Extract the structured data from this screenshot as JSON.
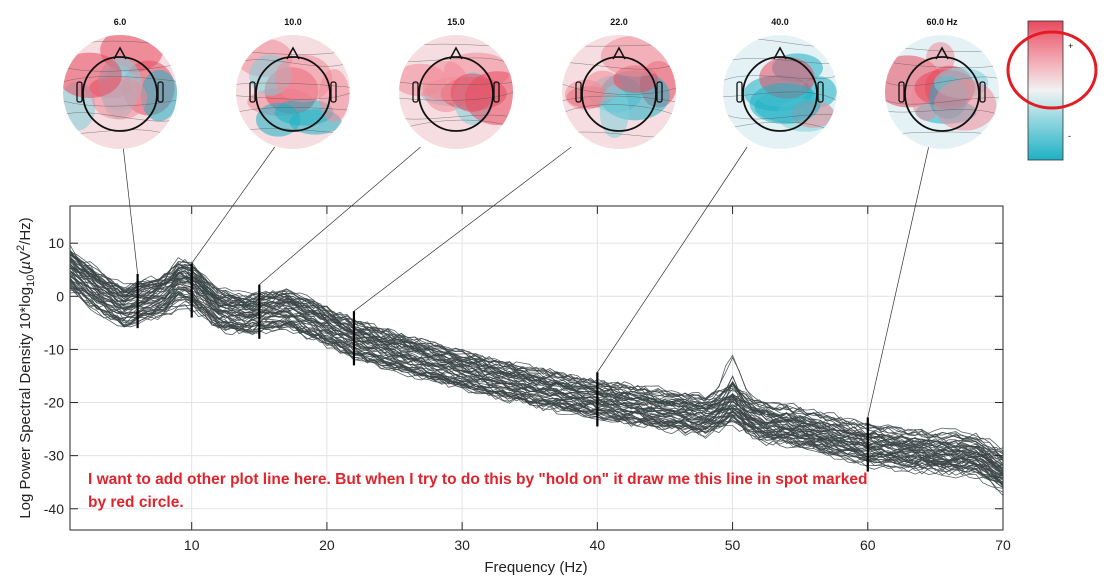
{
  "chart_data": {
    "type": "line",
    "title": "",
    "xlabel": "Frequency (Hz)",
    "ylabel_prefix": "Log Power Spectral Density 10*log",
    "ylabel_sub": "10",
    "ylabel_mid": "(",
    "ylabel_mu": "µ",
    "ylabel_v": "V",
    "ylabel_sup": "2",
    "ylabel_suffix": "/Hz)",
    "xlim": [
      1,
      70
    ],
    "ylim": [
      -44,
      17
    ],
    "xticks": [
      10,
      20,
      30,
      40,
      50,
      60,
      70
    ],
    "yticks": [
      10,
      0,
      -10,
      -20,
      -30,
      -40
    ],
    "grid": true,
    "channel_count": 64,
    "line_color": "#3a4444",
    "mean_spectrum": {
      "x": [
        1,
        3,
        5,
        6,
        8,
        9,
        10,
        11,
        12,
        13,
        14,
        15,
        17,
        19,
        22,
        25,
        30,
        35,
        40,
        45,
        48,
        50,
        52,
        55,
        60,
        65,
        68,
        70
      ],
      "y": [
        5,
        1,
        -2,
        -1,
        0,
        1.5,
        1,
        -0.5,
        -2.5,
        -3,
        -3.5,
        -3,
        -2.5,
        -4.5,
        -8,
        -10.5,
        -14,
        -17,
        -19.5,
        -21.5,
        -22.5,
        -21,
        -23.5,
        -25,
        -28,
        -29.5,
        -30,
        -33
      ]
    },
    "topomaps": [
      {
        "label": "6.0",
        "freq": 6
      },
      {
        "label": "10.0",
        "freq": 10
      },
      {
        "label": "15.0",
        "freq": 15
      },
      {
        "label": "22.0",
        "freq": 22
      },
      {
        "label": "40.0",
        "freq": 40
      },
      {
        "label": "60.0 Hz",
        "freq": 60
      }
    ],
    "colorbar": {
      "plus_label": "+",
      "minus_label": "-",
      "top_color": "#e84a5f",
      "mid_color": "#f2f2f2",
      "bottom_color": "#1eb1c4"
    },
    "highlight_circle_color": "#e31b23"
  },
  "annotation": {
    "text": "I want to add other plot line here. But when I try to do this by \"hold on\" it draw me this line in spot marked by red circle."
  }
}
